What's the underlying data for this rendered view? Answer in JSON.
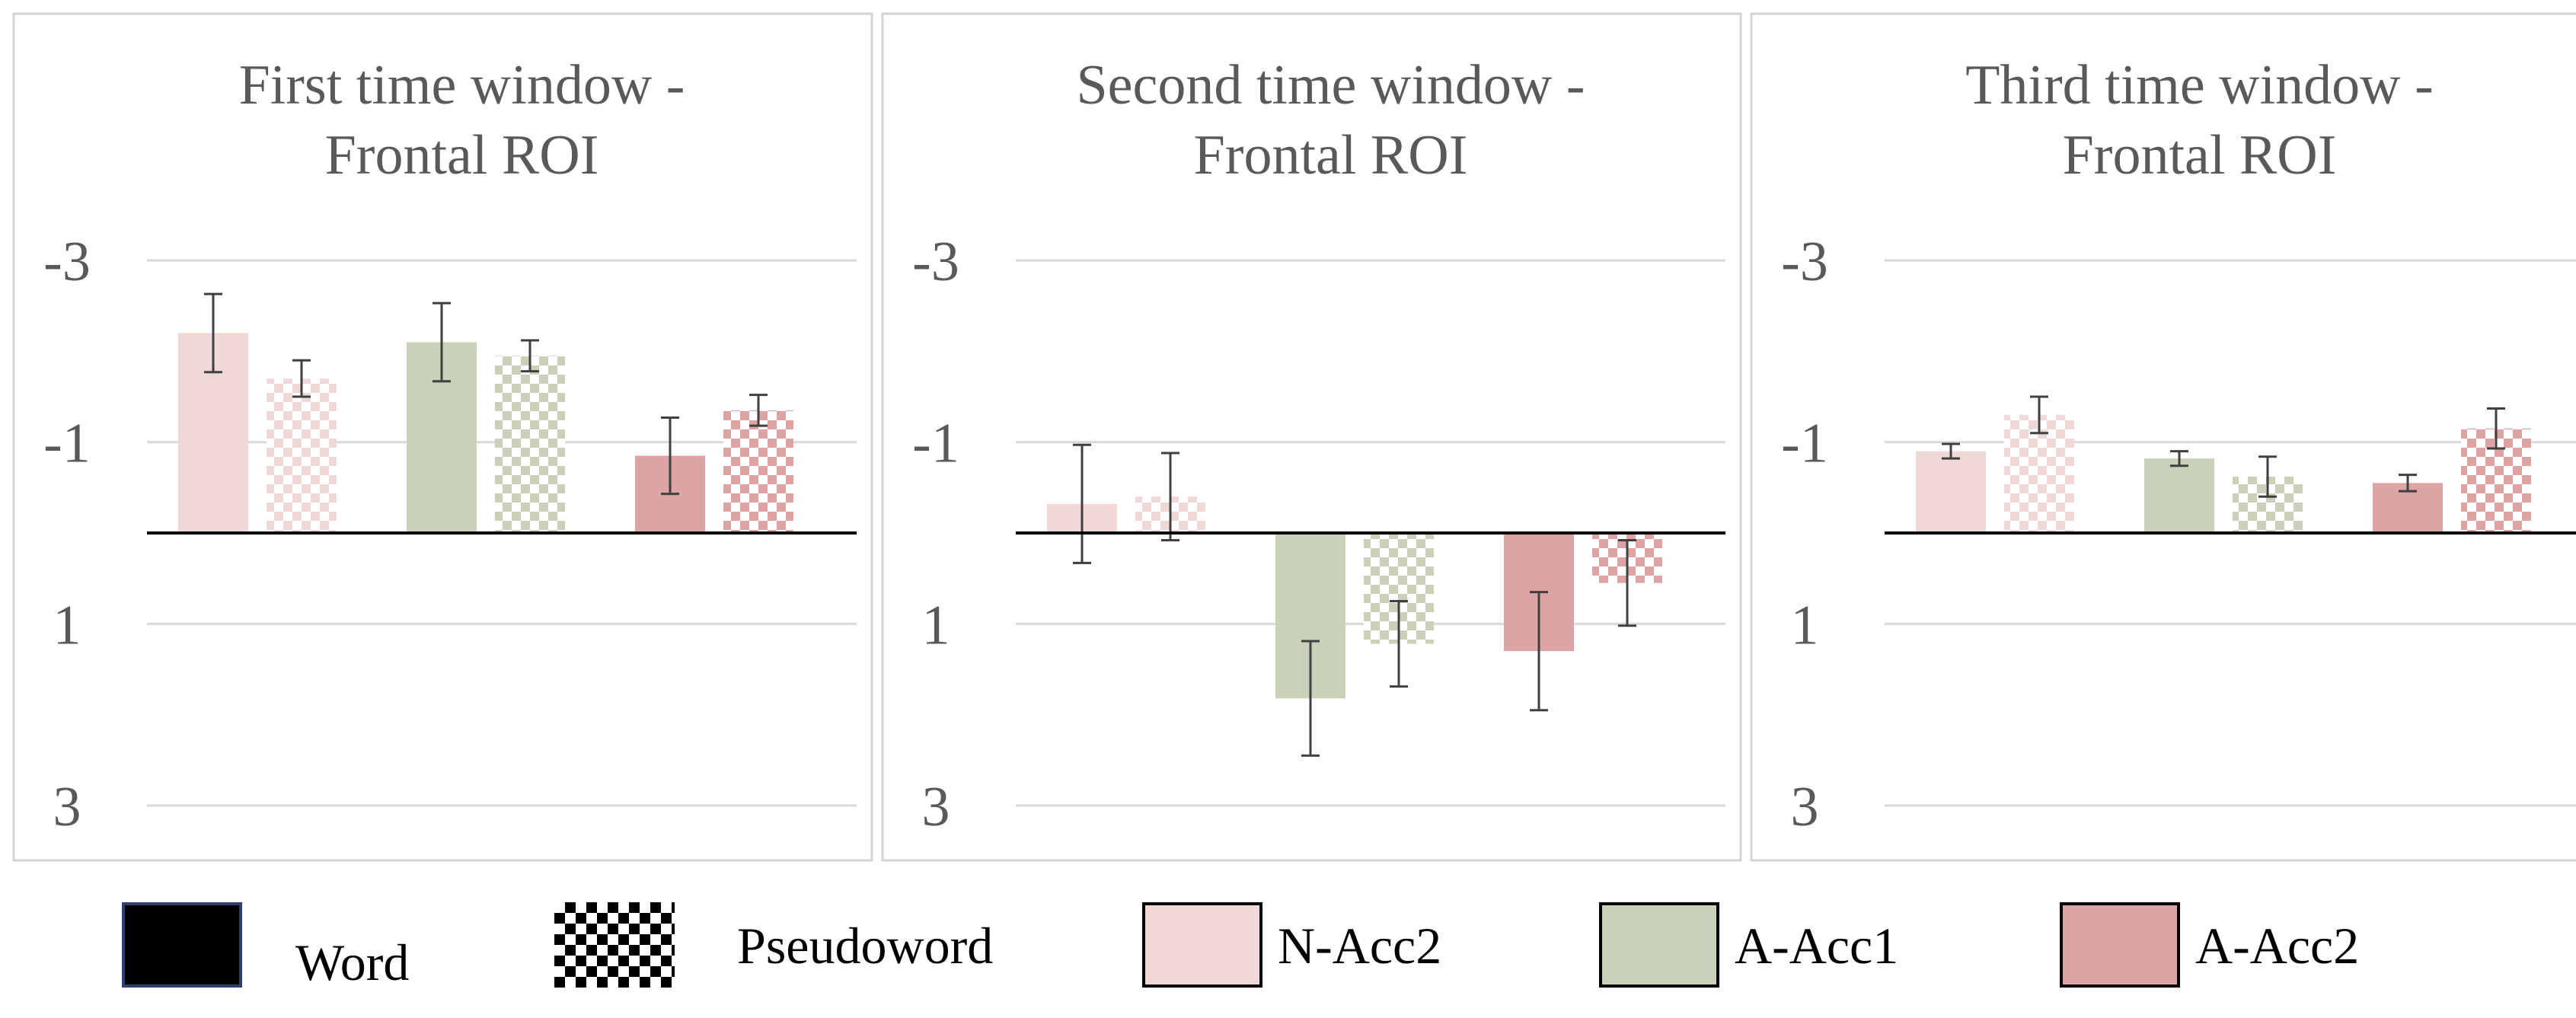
{
  "chart_data": [
    {
      "type": "bar",
      "title": "First time window -",
      "subtitle": "Frontal ROI",
      "categories": [
        "N-Acc2",
        "A-Acc1",
        "A-Acc2"
      ],
      "series": [
        {
          "name": "Word",
          "values": [
            -2.2,
            -2.1,
            -0.85
          ],
          "errors": [
            0.43,
            0.43,
            0.42
          ]
        },
        {
          "name": "Pseudoword",
          "values": [
            -1.7,
            -1.95,
            -1.35
          ],
          "errors": [
            0.2,
            0.17,
            0.17
          ]
        }
      ],
      "ylim": [
        3,
        -3
      ],
      "yticks": [
        -3,
        -1,
        1,
        3
      ],
      "grid": true
    },
    {
      "type": "bar",
      "title": "Second time window -",
      "subtitle": "Frontal ROI",
      "categories": [
        "N-Acc2",
        "A-Acc1",
        "A-Acc2"
      ],
      "series": [
        {
          "name": "Word",
          "values": [
            -0.32,
            1.82,
            1.3
          ],
          "errors": [
            0.65,
            0.63,
            0.65
          ]
        },
        {
          "name": "Pseudoword",
          "values": [
            -0.4,
            1.22,
            0.55
          ],
          "errors": [
            0.48,
            0.47,
            0.47
          ]
        }
      ],
      "ylim": [
        3,
        -3
      ],
      "yticks": [
        -3,
        -1,
        1,
        3
      ],
      "grid": true
    },
    {
      "type": "bar",
      "title": "Third time window -",
      "subtitle": "Frontal ROI",
      "categories": [
        "N-Acc2",
        "A-Acc1",
        "A-Acc2"
      ],
      "series": [
        {
          "name": "Word",
          "values": [
            -0.9,
            -0.82,
            -0.55
          ],
          "errors": [
            0.08,
            0.08,
            0.09
          ]
        },
        {
          "name": "Pseudoword",
          "values": [
            -1.3,
            -0.62,
            -1.15
          ],
          "errors": [
            0.2,
            0.22,
            0.22
          ]
        }
      ],
      "ylim": [
        3,
        -3
      ],
      "yticks": [
        -3,
        -1,
        1,
        3
      ],
      "grid": true
    }
  ],
  "colors": {
    "N-Acc2": "#f0d8d8",
    "A-Acc1": "#c9d2b8",
    "A-Acc2": "#dca4a4",
    "axis": "#000000",
    "grid": "#d9d9d9",
    "panel_border": "#d4d4d4",
    "text": "#595959",
    "errorbar": "#404040"
  },
  "legend": {
    "items": [
      {
        "label": "Word",
        "fill": "#000000",
        "pattern": "solid",
        "border": "#2f3f6f"
      },
      {
        "label": "Pseudoword",
        "fill": "#000000",
        "pattern": "checker",
        "border": "none"
      },
      {
        "label": "N-Acc2",
        "fill": "#f0d8d8",
        "pattern": "solid",
        "border": "#000000"
      },
      {
        "label": "A-Acc1",
        "fill": "#c9d2b8",
        "pattern": "solid",
        "border": "#000000"
      },
      {
        "label": "A-Acc2",
        "fill": "#dca4a4",
        "pattern": "solid",
        "border": "#000000"
      }
    ]
  }
}
